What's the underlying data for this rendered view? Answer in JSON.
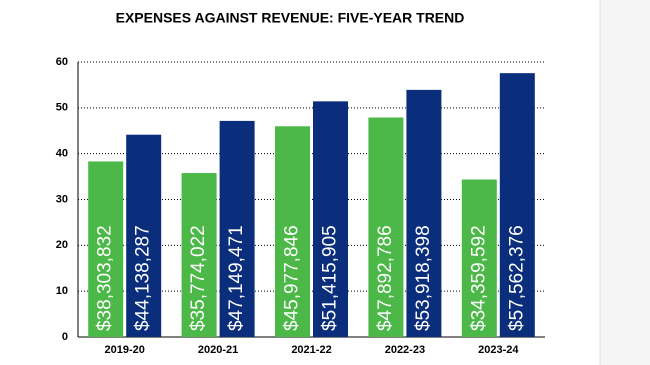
{
  "chart_data": {
    "type": "bar",
    "title": "EXPENSES AGAINST REVENUE: FIVE-YEAR TREND",
    "categories": [
      "2019-20",
      "2020-21",
      "2021-22",
      "2022-23",
      "2023-24"
    ],
    "series": [
      {
        "color": "#4cb848",
        "values": [
          38.303832,
          35.774022,
          45.977846,
          47.892786,
          34.359592
        ],
        "value_labels": [
          "$38,303,832",
          "$35,774,022",
          "$45,977,846",
          "$47,892,786",
          "$34,359,592"
        ]
      },
      {
        "color": "#0a2d7c",
        "values": [
          44.138287,
          47.149471,
          51.415905,
          53.918398,
          57.562376
        ],
        "value_labels": [
          "$44,138,287",
          "$47,149,471",
          "$51,415,905",
          "$53,918,398",
          "$57,562,376"
        ]
      }
    ],
    "ylim": [
      0,
      60
    ],
    "yticks": [
      0,
      10,
      20,
      30,
      40,
      50,
      60
    ],
    "grid": true
  }
}
